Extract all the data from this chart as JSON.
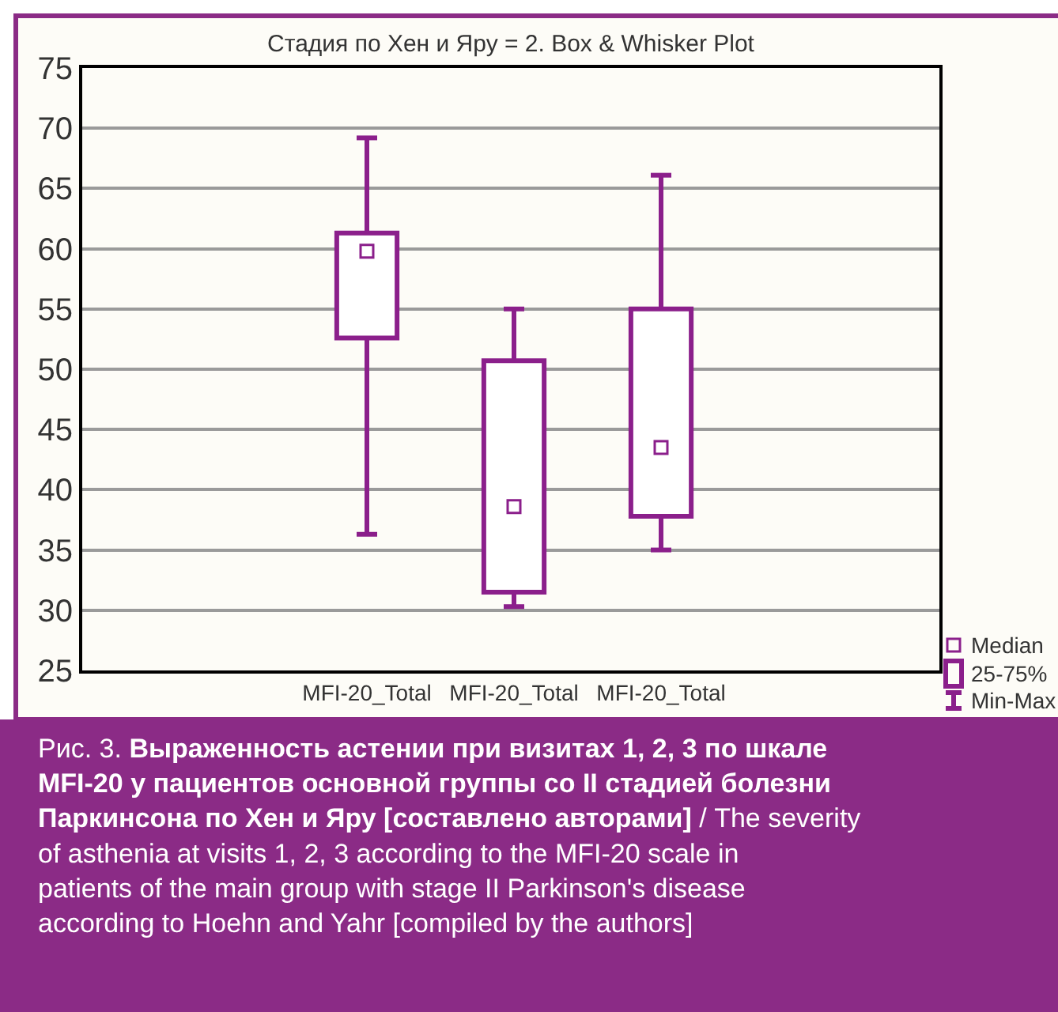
{
  "chart_data": {
    "type": "box",
    "title": "Стадия по Хен и Яру = 2. Box & Whisker Plot",
    "categories": [
      "MFI-20_Total",
      "MFI-20_Total",
      "MFI-20_Total"
    ],
    "series": [
      {
        "color": "#8b1f8b",
        "boxes": [
          {
            "low": 36.3,
            "q1": 52.6,
            "median": 59.8,
            "q3": 61.3,
            "high": 69.2
          },
          {
            "low": 30.3,
            "q1": 31.5,
            "median": 38.6,
            "q3": 50.7,
            "high": 55.0
          },
          {
            "low": 35.0,
            "q1": 37.8,
            "median": 43.5,
            "q3": 55.0,
            "high": 66.1
          }
        ]
      }
    ],
    "ylim": [
      25,
      75
    ],
    "yticks": [
      25,
      30,
      35,
      40,
      45,
      50,
      55,
      60,
      65,
      70,
      75
    ],
    "grid": "y",
    "marker": "square",
    "annotations": [
      "Median",
      "25-75%",
      "Min-Max",
      "Рис. 3.",
      "Выраженность астении при визитах 1, 2, 3 по шкале MFI-20 у пациентов основной группы со II стадией болезни Паркинсона по Хен и Яру [составлено авторами]",
      "/ The severity of asthenia at visits 1, 2, 3 according to the MFI-20 scale in patients of the main group with stage II Parkinson's disease according to Hoehn and Yahr [compiled by the authors]"
    ]
  }
}
